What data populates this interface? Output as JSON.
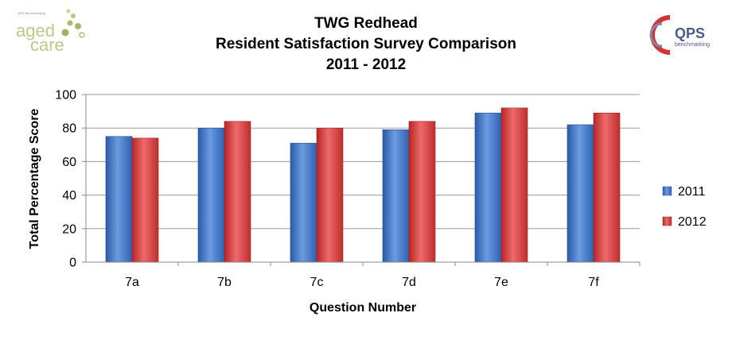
{
  "logos": {
    "left": {
      "small": "QPS Benchmarking",
      "line1": "aged",
      "line2": "care"
    },
    "right": {
      "name": "QPS",
      "tagline": "benchmarking"
    }
  },
  "chart_data": {
    "type": "bar",
    "title_lines": [
      "TWG Redhead",
      "Resident Satisfaction  Survey Comparison",
      "2011 - 2012"
    ],
    "xlabel": "Question Number",
    "ylabel": "Total Percentage Score",
    "categories": [
      "7a",
      "7b",
      "7c",
      "7d",
      "7e",
      "7f"
    ],
    "series": [
      {
        "name": "2011",
        "values": [
          75,
          80,
          71,
          79,
          89,
          82
        ],
        "color": "#3f73c4"
      },
      {
        "name": "2012",
        "values": [
          74,
          84,
          80,
          84,
          92,
          89
        ],
        "color": "#d33a3a"
      }
    ],
    "ylim": [
      0,
      100
    ],
    "yticks": [
      0,
      20,
      40,
      60,
      80,
      100
    ],
    "grid": true,
    "legend": "right"
  }
}
